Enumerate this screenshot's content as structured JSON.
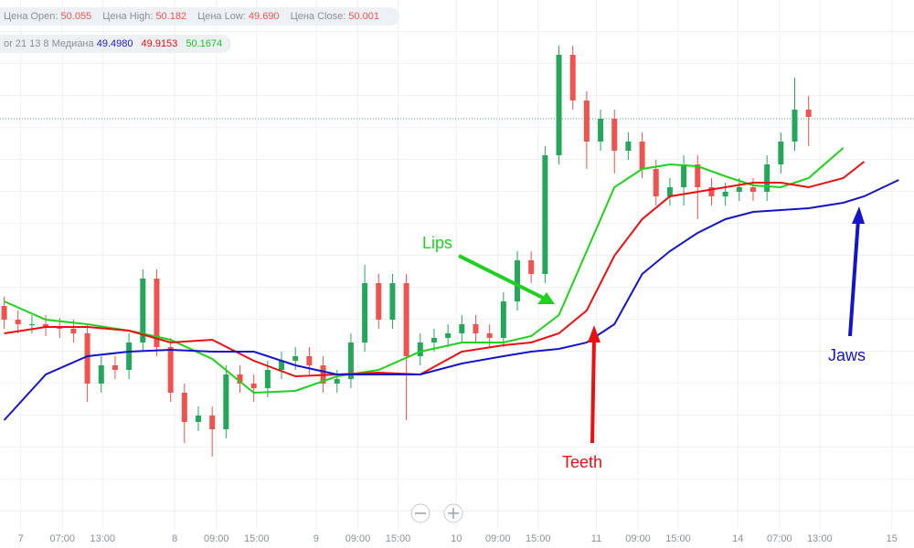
{
  "info_bar": {
    "ohlc": [
      {
        "label": "Цена Open:",
        "value": "50.055"
      },
      {
        "label": "Цена High:",
        "value": "50.182"
      },
      {
        "label": "Цена Low:",
        "value": "49.690"
      },
      {
        "label": "Цена Close:",
        "value": "50.001"
      }
    ],
    "indicator": {
      "label": "or 21 13 8 Медиана",
      "values": [
        "49.4980",
        "49.9153",
        "50.1674"
      ]
    }
  },
  "chart_data": {
    "type": "candlestick",
    "up_color": "#26a65b",
    "down_color": "#ef5350",
    "open": [
      49.45,
      49.3,
      49.25,
      49.25,
      49.22,
      49.2,
      49.15,
      48.6,
      48.8,
      48.75,
      49.05,
      49.75,
      49.0,
      48.5,
      48.18,
      48.25,
      48.1,
      48.7,
      48.6,
      48.55,
      48.75,
      48.85,
      48.9,
      48.8,
      48.6,
      48.65,
      49.05,
      49.7,
      49.3,
      49.7,
      48.9,
      49.05,
      49.1,
      49.15,
      49.25,
      49.15,
      49.1,
      49.5,
      49.95,
      49.8,
      51.1,
      52.2,
      51.7,
      51.25,
      51.5,
      51.15,
      51.25,
      50.95,
      50.65,
      50.75,
      51.0,
      50.75,
      50.65,
      50.7,
      50.75,
      50.7,
      51.0,
      51.25,
      51.6
    ],
    "high": [
      49.55,
      49.4,
      49.35,
      49.35,
      49.32,
      49.3,
      49.25,
      48.9,
      48.9,
      49.15,
      49.85,
      49.85,
      49.1,
      48.6,
      48.35,
      48.35,
      48.8,
      48.8,
      48.7,
      48.85,
      48.95,
      49.0,
      49.0,
      48.9,
      48.75,
      49.15,
      49.9,
      49.8,
      49.8,
      49.8,
      49.15,
      49.2,
      49.25,
      49.35,
      49.35,
      49.25,
      49.6,
      50.05,
      50.05,
      51.2,
      52.3,
      52.3,
      51.8,
      51.6,
      51.6,
      51.35,
      51.35,
      51.05,
      50.85,
      51.1,
      51.1,
      50.85,
      50.8,
      50.85,
      50.85,
      51.1,
      51.35,
      51.95,
      51.75
    ],
    "low": [
      49.2,
      49.15,
      49.15,
      49.12,
      49.1,
      49.05,
      48.4,
      48.5,
      48.65,
      48.65,
      48.95,
      48.9,
      48.4,
      47.95,
      48.08,
      47.8,
      48.0,
      48.5,
      48.4,
      48.45,
      48.65,
      48.75,
      48.7,
      48.5,
      48.5,
      48.55,
      48.95,
      49.2,
      49.2,
      48.2,
      48.8,
      48.95,
      49.0,
      49.05,
      49.05,
      49.0,
      49.0,
      49.4,
      49.7,
      49.7,
      51.0,
      51.6,
      50.95,
      51.15,
      50.9,
      51.05,
      50.85,
      50.55,
      50.55,
      50.55,
      50.4,
      50.55,
      50.55,
      50.6,
      50.6,
      50.6,
      50.9,
      51.15,
      51.2
    ],
    "close": [
      49.3,
      49.25,
      49.25,
      49.22,
      49.2,
      49.15,
      48.6,
      48.8,
      48.75,
      49.05,
      49.75,
      49.0,
      48.5,
      48.18,
      48.25,
      48.1,
      48.7,
      48.6,
      48.55,
      48.75,
      48.85,
      48.9,
      48.8,
      48.6,
      48.65,
      49.05,
      49.7,
      49.3,
      49.7,
      48.9,
      49.05,
      49.1,
      49.15,
      49.25,
      49.15,
      49.1,
      49.5,
      49.95,
      49.8,
      51.1,
      52.2,
      51.7,
      51.25,
      51.5,
      51.15,
      51.25,
      50.95,
      50.65,
      50.75,
      51.0,
      50.75,
      50.65,
      50.7,
      50.75,
      50.7,
      51.0,
      51.25,
      51.6,
      51.52
    ],
    "series": [
      {
        "name": "Lips",
        "color": "#1fd01f",
        "x": [
          0,
          3,
          6,
          9,
          12,
          15,
          18,
          21,
          24,
          27,
          30,
          33,
          36,
          38,
          40,
          42,
          44,
          46,
          48,
          50,
          52,
          54,
          56,
          58,
          60.5
        ],
        "values": [
          49.5,
          49.3,
          49.25,
          49.18,
          49.08,
          48.87,
          48.5,
          48.52,
          48.68,
          48.75,
          48.95,
          49.05,
          49.05,
          49.12,
          49.35,
          50.05,
          50.75,
          50.95,
          51.0,
          50.98,
          50.87,
          50.77,
          50.75,
          50.85,
          51.18
        ]
      },
      {
        "name": "Teeth",
        "color": "#e81010",
        "x": [
          0,
          3,
          6,
          9,
          12,
          15,
          18,
          21,
          24,
          27,
          30,
          33,
          36,
          38,
          40,
          42,
          44,
          46,
          48,
          50,
          52,
          54,
          56,
          58,
          60.5,
          62
        ],
        "values": [
          49.15,
          49.22,
          49.22,
          49.18,
          49.05,
          49.08,
          48.85,
          48.68,
          48.7,
          48.72,
          48.7,
          48.95,
          49.02,
          49.05,
          49.15,
          49.4,
          50.0,
          50.4,
          50.65,
          50.7,
          50.75,
          50.8,
          50.8,
          50.75,
          50.85,
          51.03
        ]
      },
      {
        "name": "Jaws",
        "color": "#1414c8",
        "x": [
          0,
          3,
          6,
          9,
          12,
          15,
          18,
          21,
          24,
          27,
          30,
          33,
          36,
          38,
          40,
          42,
          44,
          46,
          48,
          50,
          52,
          54,
          56,
          58,
          60.5,
          62,
          64.5
        ],
        "values": [
          48.2,
          48.7,
          48.9,
          48.95,
          48.97,
          48.95,
          48.95,
          48.8,
          48.7,
          48.7,
          48.7,
          48.82,
          48.9,
          48.95,
          48.98,
          49.05,
          49.25,
          49.8,
          50.05,
          50.25,
          50.4,
          50.48,
          50.5,
          50.52,
          50.58,
          50.65,
          50.83
        ]
      }
    ],
    "price_line": 51.5,
    "xlim": [
      -0.3,
      65.6
    ],
    "ylim": [
      47.0,
      52.8
    ],
    "xticks": [
      {
        "value": 1.2,
        "label": "7"
      },
      {
        "value": 4.2,
        "label": "07:00"
      },
      {
        "value": 7.1,
        "label": "13:00"
      },
      {
        "value": 12.3,
        "label": "8"
      },
      {
        "value": 15.3,
        "label": "09:00"
      },
      {
        "value": 18.2,
        "label": "15:00"
      },
      {
        "value": 22.5,
        "label": "9"
      },
      {
        "value": 25.5,
        "label": "09:00"
      },
      {
        "value": 28.4,
        "label": "15:00"
      },
      {
        "value": 32.6,
        "label": "10"
      },
      {
        "value": 35.6,
        "label": "09:00"
      },
      {
        "value": 38.5,
        "label": "15:00"
      },
      {
        "value": 42.7,
        "label": "11"
      },
      {
        "value": 45.7,
        "label": "09:00"
      },
      {
        "value": 48.6,
        "label": "15:00"
      },
      {
        "value": 52.9,
        "label": "14"
      },
      {
        "value": 55.9,
        "label": "07:00"
      },
      {
        "value": 58.8,
        "label": "13:00"
      },
      {
        "value": 64.0,
        "label": "15"
      }
    ]
  }
}
